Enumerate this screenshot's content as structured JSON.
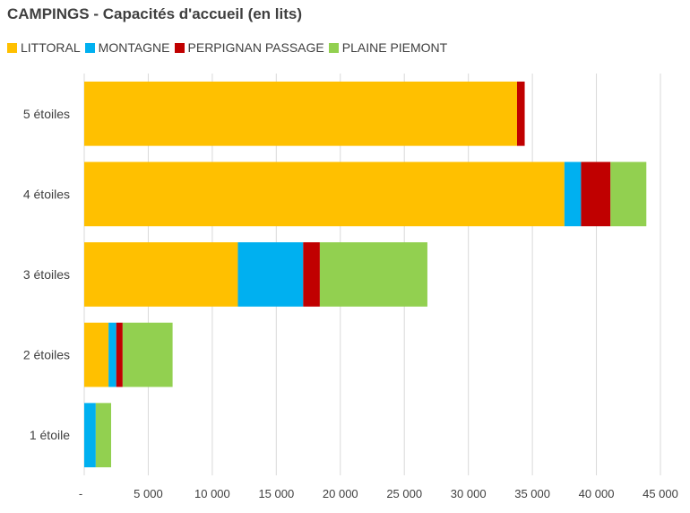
{
  "chart_data": {
    "type": "bar",
    "orientation": "horizontal",
    "stacked": true,
    "title": "CAMPINGS - Capacités d'accueil (en lits)",
    "categories": [
      "5 étoiles",
      "4 étoiles",
      "3 étoiles",
      "2 étoiles",
      "1 étoile"
    ],
    "series": [
      {
        "name": "LITTORAL",
        "color": "#FFC000",
        "values": [
          33800,
          37500,
          12000,
          1900,
          0
        ]
      },
      {
        "name": "MONTAGNE",
        "color": "#00B0F0",
        "values": [
          0,
          1300,
          5100,
          600,
          900
        ]
      },
      {
        "name": "PERPIGNAN PASSAGE",
        "color": "#C00000",
        "values": [
          600,
          2300,
          1300,
          500,
          0
        ]
      },
      {
        "name": "PLAINE PIEMONT",
        "color": "#92D050",
        "values": [
          0,
          2800,
          8400,
          3900,
          1200
        ]
      }
    ],
    "xlim": [
      0,
      45000
    ],
    "xticks": [
      0,
      5000,
      10000,
      15000,
      20000,
      25000,
      30000,
      35000,
      40000,
      45000
    ],
    "xtick_labels": [
      "-",
      "5 000",
      "10 000",
      "15 000",
      "20 000",
      "25 000",
      "30 000",
      "35 000",
      "40 000",
      "45 000"
    ],
    "gridlines": true,
    "legend_position": "top-left"
  }
}
